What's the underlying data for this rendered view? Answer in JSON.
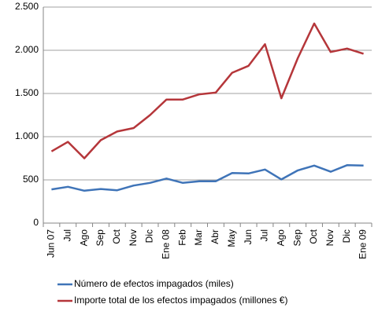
{
  "chart_data": {
    "type": "line",
    "categories": [
      "Jun 07",
      "Jul",
      "Ago",
      "Sep",
      "Oct",
      "Nov",
      "Dic",
      "Ene 08",
      "Feb",
      "Mar",
      "Abr",
      "May",
      "Jun",
      "Jul",
      "Ago",
      "Sep",
      "Oct",
      "Nov",
      "Dic",
      "Ene 09"
    ],
    "series": [
      {
        "name": "Número de efectos impagados (miles)",
        "color": "#3f74b8",
        "values": [
          390,
          420,
          375,
          395,
          380,
          435,
          465,
          515,
          465,
          485,
          485,
          580,
          575,
          620,
          505,
          610,
          665,
          595,
          670,
          665
        ]
      },
      {
        "name": "Importe total de los efectos impagados (millones €)",
        "color": "#b5363a",
        "values": [
          830,
          940,
          750,
          960,
          1060,
          1100,
          1250,
          1430,
          1430,
          1490,
          1510,
          1740,
          1820,
          2070,
          1445,
          1910,
          2310,
          1980,
          2020,
          1960
        ]
      }
    ],
    "ylim": [
      0,
      2500
    ],
    "yticks": [
      0,
      500,
      {
        "value": 1000,
        "label": "1.000"
      },
      {
        "value": 1500,
        "label": "1.500"
      },
      {
        "value": 2000,
        "label": "2.000"
      },
      {
        "value": 2500,
        "label": "2.500"
      }
    ],
    "grid": true,
    "legend": "bottom"
  }
}
